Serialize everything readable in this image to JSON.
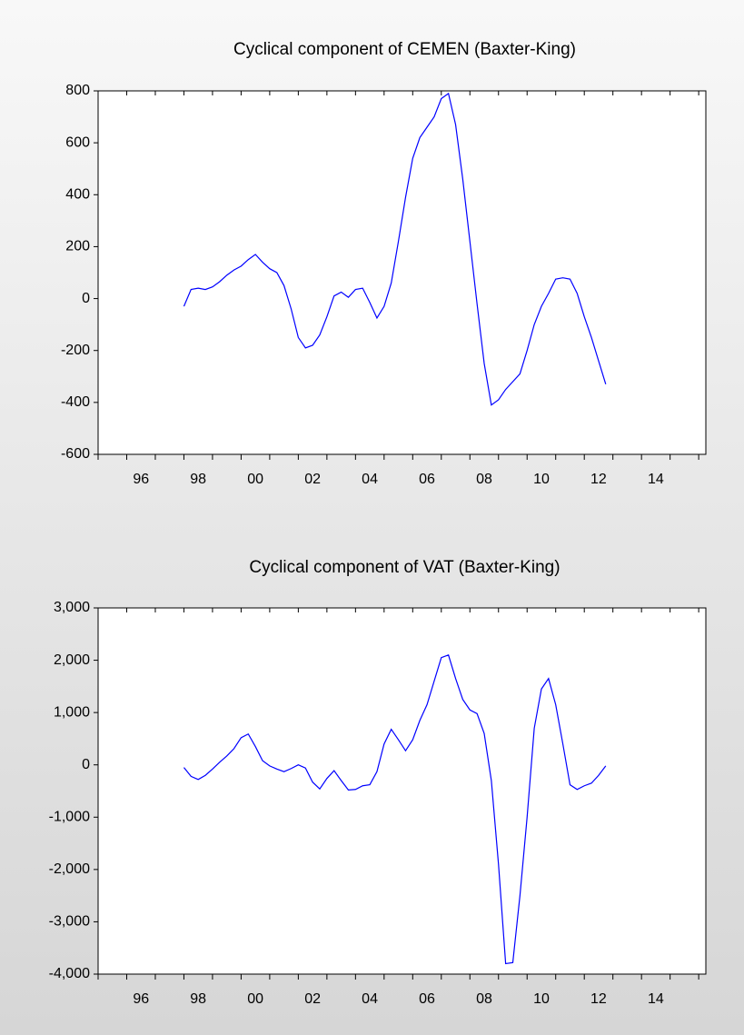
{
  "chart_data": [
    {
      "type": "line",
      "title": "Cyclical component of CEMEN (Baxter-King)",
      "x": [
        1998,
        1998.25,
        1998.5,
        1998.75,
        1999,
        1999.25,
        1999.5,
        1999.75,
        2000,
        2000.25,
        2000.5,
        2000.75,
        2001,
        2001.25,
        2001.5,
        2001.75,
        2002,
        2002.25,
        2002.5,
        2002.75,
        2003,
        2003.25,
        2003.5,
        2003.75,
        2004,
        2004.25,
        2004.5,
        2004.75,
        2005,
        2005.25,
        2005.5,
        2005.75,
        2006,
        2006.25,
        2006.5,
        2006.75,
        2007,
        2007.25,
        2007.5,
        2007.75,
        2008,
        2008.25,
        2008.5,
        2008.75,
        2009,
        2009.25,
        2009.5,
        2009.75,
        2010,
        2010.25,
        2010.5,
        2010.75,
        2011,
        2011.25,
        2011.5,
        2011.75,
        2012,
        2012.25,
        2012.5,
        2012.75
      ],
      "series": [
        {
          "color": "#0000ff",
          "values": [
            -30,
            35,
            40,
            35,
            45,
            65,
            90,
            110,
            125,
            150,
            170,
            140,
            115,
            100,
            50,
            -40,
            -150,
            -190,
            -180,
            -140,
            -70,
            10,
            25,
            5,
            35,
            40,
            -15,
            -75,
            -30,
            60,
            220,
            390,
            540,
            620,
            660,
            700,
            770,
            790,
            670,
            460,
            220,
            -20,
            -250,
            -410,
            -390,
            -350,
            -320,
            -290,
            -200,
            -100,
            -30,
            20,
            75,
            80,
            75,
            20,
            -70,
            -150,
            -240,
            -330
          ]
        }
      ],
      "xlim": [
        1995,
        2016.25
      ],
      "xticks": [
        {
          "value": 1996.5,
          "label": "96"
        },
        {
          "value": 1998.5,
          "label": "98"
        },
        {
          "value": 2000.5,
          "label": "00"
        },
        {
          "value": 2002.5,
          "label": "02"
        },
        {
          "value": 2004.5,
          "label": "04"
        },
        {
          "value": 2006.5,
          "label": "06"
        },
        {
          "value": 2008.5,
          "label": "08"
        },
        {
          "value": 2010.5,
          "label": "10"
        },
        {
          "value": 2012.5,
          "label": "12"
        },
        {
          "value": 2014.5,
          "label": "14"
        }
      ],
      "ylim": [
        -600,
        800
      ],
      "yticks": [
        -600,
        -400,
        -200,
        0,
        200,
        400,
        600,
        800
      ]
    },
    {
      "type": "line",
      "title": "Cyclical component of VAT (Baxter-King)",
      "x": [
        1998,
        1998.25,
        1998.5,
        1998.75,
        1999,
        1999.25,
        1999.5,
        1999.75,
        2000,
        2000.25,
        2000.5,
        2000.75,
        2001,
        2001.25,
        2001.5,
        2001.75,
        2002,
        2002.25,
        2002.5,
        2002.75,
        2003,
        2003.25,
        2003.5,
        2003.75,
        2004,
        2004.25,
        2004.5,
        2004.75,
        2005,
        2005.25,
        2005.5,
        2005.75,
        2006,
        2006.25,
        2006.5,
        2006.75,
        2007,
        2007.25,
        2007.5,
        2007.75,
        2008,
        2008.25,
        2008.5,
        2008.75,
        2009,
        2009.25,
        2009.5,
        2009.75,
        2010,
        2010.25,
        2010.5,
        2010.75,
        2011,
        2011.25,
        2011.5,
        2011.75,
        2012,
        2012.25,
        2012.5,
        2012.75
      ],
      "series": [
        {
          "color": "#0000ff",
          "values": [
            -50,
            -220,
            -280,
            -200,
            -80,
            50,
            170,
            310,
            520,
            590,
            350,
            80,
            -20,
            -80,
            -130,
            -70,
            0,
            -60,
            -330,
            -460,
            -260,
            -110,
            -300,
            -480,
            -470,
            -400,
            -380,
            -130,
            400,
            680,
            480,
            270,
            480,
            850,
            1150,
            1600,
            2050,
            2100,
            1650,
            1250,
            1050,
            980,
            600,
            -300,
            -1900,
            -3800,
            -3780,
            -2500,
            -1000,
            700,
            1450,
            1650,
            1150,
            400,
            -380,
            -470,
            -400,
            -350,
            -200,
            -20
          ]
        }
      ],
      "xlim": [
        1995,
        2016.25
      ],
      "xticks": [
        {
          "value": 1996.5,
          "label": "96"
        },
        {
          "value": 1998.5,
          "label": "98"
        },
        {
          "value": 2000.5,
          "label": "00"
        },
        {
          "value": 2002.5,
          "label": "02"
        },
        {
          "value": 2004.5,
          "label": "04"
        },
        {
          "value": 2006.5,
          "label": "06"
        },
        {
          "value": 2008.5,
          "label": "08"
        },
        {
          "value": 2010.5,
          "label": "10"
        },
        {
          "value": 2012.5,
          "label": "12"
        },
        {
          "value": 2014.5,
          "label": "14"
        }
      ],
      "ylim": [
        -4000,
        3000
      ],
      "yticks": [
        {
          "value": -4000,
          "label": "-4,000"
        },
        {
          "value": -3000,
          "label": "-3,000"
        },
        {
          "value": -2000,
          "label": "-2,000"
        },
        {
          "value": -1000,
          "label": "-1,000"
        },
        0,
        {
          "value": 1000,
          "label": "1,000"
        },
        {
          "value": 2000,
          "label": "2,000"
        },
        {
          "value": 3000,
          "label": "3,000"
        }
      ]
    }
  ]
}
